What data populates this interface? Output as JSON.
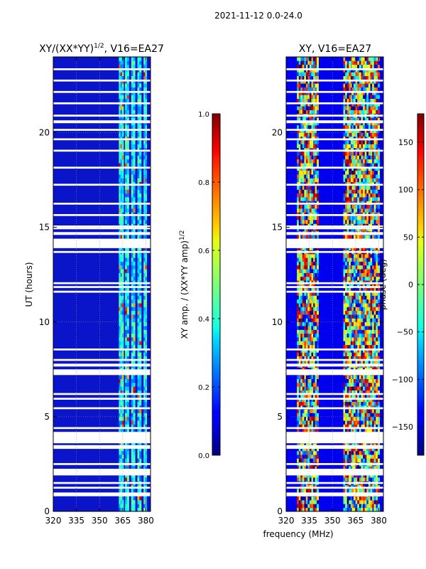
{
  "suptitle": "2021-11-12 0.0-24.0",
  "chart_data": [
    {
      "type": "heatmap",
      "title": "XY/(XX*YY)",
      "title_sup": "1/2",
      "title_suffix": ", V16=EA27",
      "xlabel": "",
      "ylabel": "UT (hours)",
      "xlim": [
        320,
        383
      ],
      "ylim": [
        0,
        24
      ],
      "xticks": [
        320,
        335,
        350,
        365,
        380
      ],
      "yticks": [
        0,
        5,
        10,
        15,
        20
      ],
      "grid": true,
      "colorbar": {
        "label": "XY amp. / (XX*YY amp)",
        "label_sup": "1/2",
        "range": [
          0.0,
          1.0
        ],
        "ticks": [
          "0.0",
          "0.2",
          "0.4",
          "0.6",
          "0.8",
          "1.0"
        ],
        "tick_values": [
          0.0,
          0.2,
          0.4,
          0.6,
          0.8,
          1.0
        ],
        "colormap": "jet"
      },
      "gap_bands_ut": [
        [
          0.8,
          1.0
        ],
        [
          1.2,
          1.3
        ],
        [
          1.45,
          1.55
        ],
        [
          1.9,
          2.25
        ],
        [
          2.45,
          2.55
        ],
        [
          3.3,
          3.5
        ],
        [
          3.6,
          4.2
        ],
        [
          4.35,
          4.45
        ],
        [
          5.4,
          5.5
        ],
        [
          5.9,
          6.0
        ],
        [
          6.15,
          6.25
        ],
        [
          7.2,
          7.5
        ],
        [
          7.65,
          7.8
        ],
        [
          7.95,
          8.05
        ],
        [
          8.5,
          8.6
        ],
        [
          11.55,
          11.65
        ],
        [
          11.8,
          11.9
        ],
        [
          12.0,
          12.1
        ],
        [
          13.65,
          13.75
        ],
        [
          13.9,
          14.4
        ],
        [
          14.6,
          14.75
        ],
        [
          14.9,
          15.1
        ],
        [
          15.6,
          15.7
        ],
        [
          16.2,
          16.3
        ],
        [
          17.2,
          17.3
        ],
        [
          18.1,
          18.2
        ],
        [
          19.0,
          19.1
        ],
        [
          19.6,
          19.7
        ],
        [
          20.1,
          20.2
        ],
        [
          20.5,
          20.65
        ],
        [
          20.85,
          20.95
        ],
        [
          21.5,
          21.6
        ],
        [
          22.1,
          22.2
        ],
        [
          22.7,
          22.8
        ],
        [
          23.3,
          23.4
        ]
      ],
      "bright_channel_bands_mhz": [
        [
          362.5,
          365.5
        ],
        [
          366.5,
          369.0
        ],
        [
          370.5,
          373.0
        ],
        [
          374.5,
          377.0
        ],
        [
          378.5,
          380.5
        ]
      ]
    },
    {
      "type": "heatmap",
      "title": "XY, V16=EA27",
      "xlabel": "frequency (MHz)",
      "ylabel": "",
      "xlim": [
        320,
        383
      ],
      "ylim": [
        0,
        24
      ],
      "xticks": [
        320,
        335,
        350,
        365,
        380
      ],
      "yticks": [
        0,
        5,
        10,
        15,
        20
      ],
      "grid": true,
      "colorbar": {
        "label": "phase (deg)",
        "range": [
          -180,
          180
        ],
        "ticks": [
          "−150",
          "−100",
          "−50",
          "0",
          "50",
          "100",
          "150"
        ],
        "tick_values": [
          -150,
          -100,
          -50,
          0,
          50,
          100,
          150
        ],
        "colormap": "jet"
      },
      "gap_bands_ut": [
        [
          0.8,
          1.0
        ],
        [
          1.2,
          1.3
        ],
        [
          1.45,
          1.55
        ],
        [
          1.9,
          2.25
        ],
        [
          2.45,
          2.55
        ],
        [
          3.3,
          3.5
        ],
        [
          3.6,
          4.2
        ],
        [
          4.35,
          4.45
        ],
        [
          5.4,
          5.5
        ],
        [
          5.9,
          6.0
        ],
        [
          6.15,
          6.25
        ],
        [
          7.2,
          7.5
        ],
        [
          7.65,
          7.8
        ],
        [
          7.95,
          8.05
        ],
        [
          8.5,
          8.6
        ],
        [
          11.55,
          11.65
        ],
        [
          11.8,
          11.9
        ],
        [
          12.0,
          12.1
        ],
        [
          13.65,
          13.75
        ],
        [
          13.9,
          14.4
        ],
        [
          14.6,
          14.75
        ],
        [
          14.9,
          15.1
        ],
        [
          15.6,
          15.7
        ],
        [
          16.2,
          16.3
        ],
        [
          17.2,
          17.3
        ],
        [
          18.1,
          18.2
        ],
        [
          19.0,
          19.1
        ],
        [
          19.6,
          19.7
        ],
        [
          20.1,
          20.2
        ],
        [
          20.5,
          20.65
        ],
        [
          20.85,
          20.95
        ],
        [
          21.5,
          21.6
        ],
        [
          22.1,
          22.2
        ],
        [
          22.7,
          22.8
        ],
        [
          23.3,
          23.4
        ]
      ],
      "bright_channel_bands_mhz": [
        [
          327,
          341
        ],
        [
          357,
          363
        ],
        [
          362.5,
          380.5
        ]
      ]
    }
  ]
}
